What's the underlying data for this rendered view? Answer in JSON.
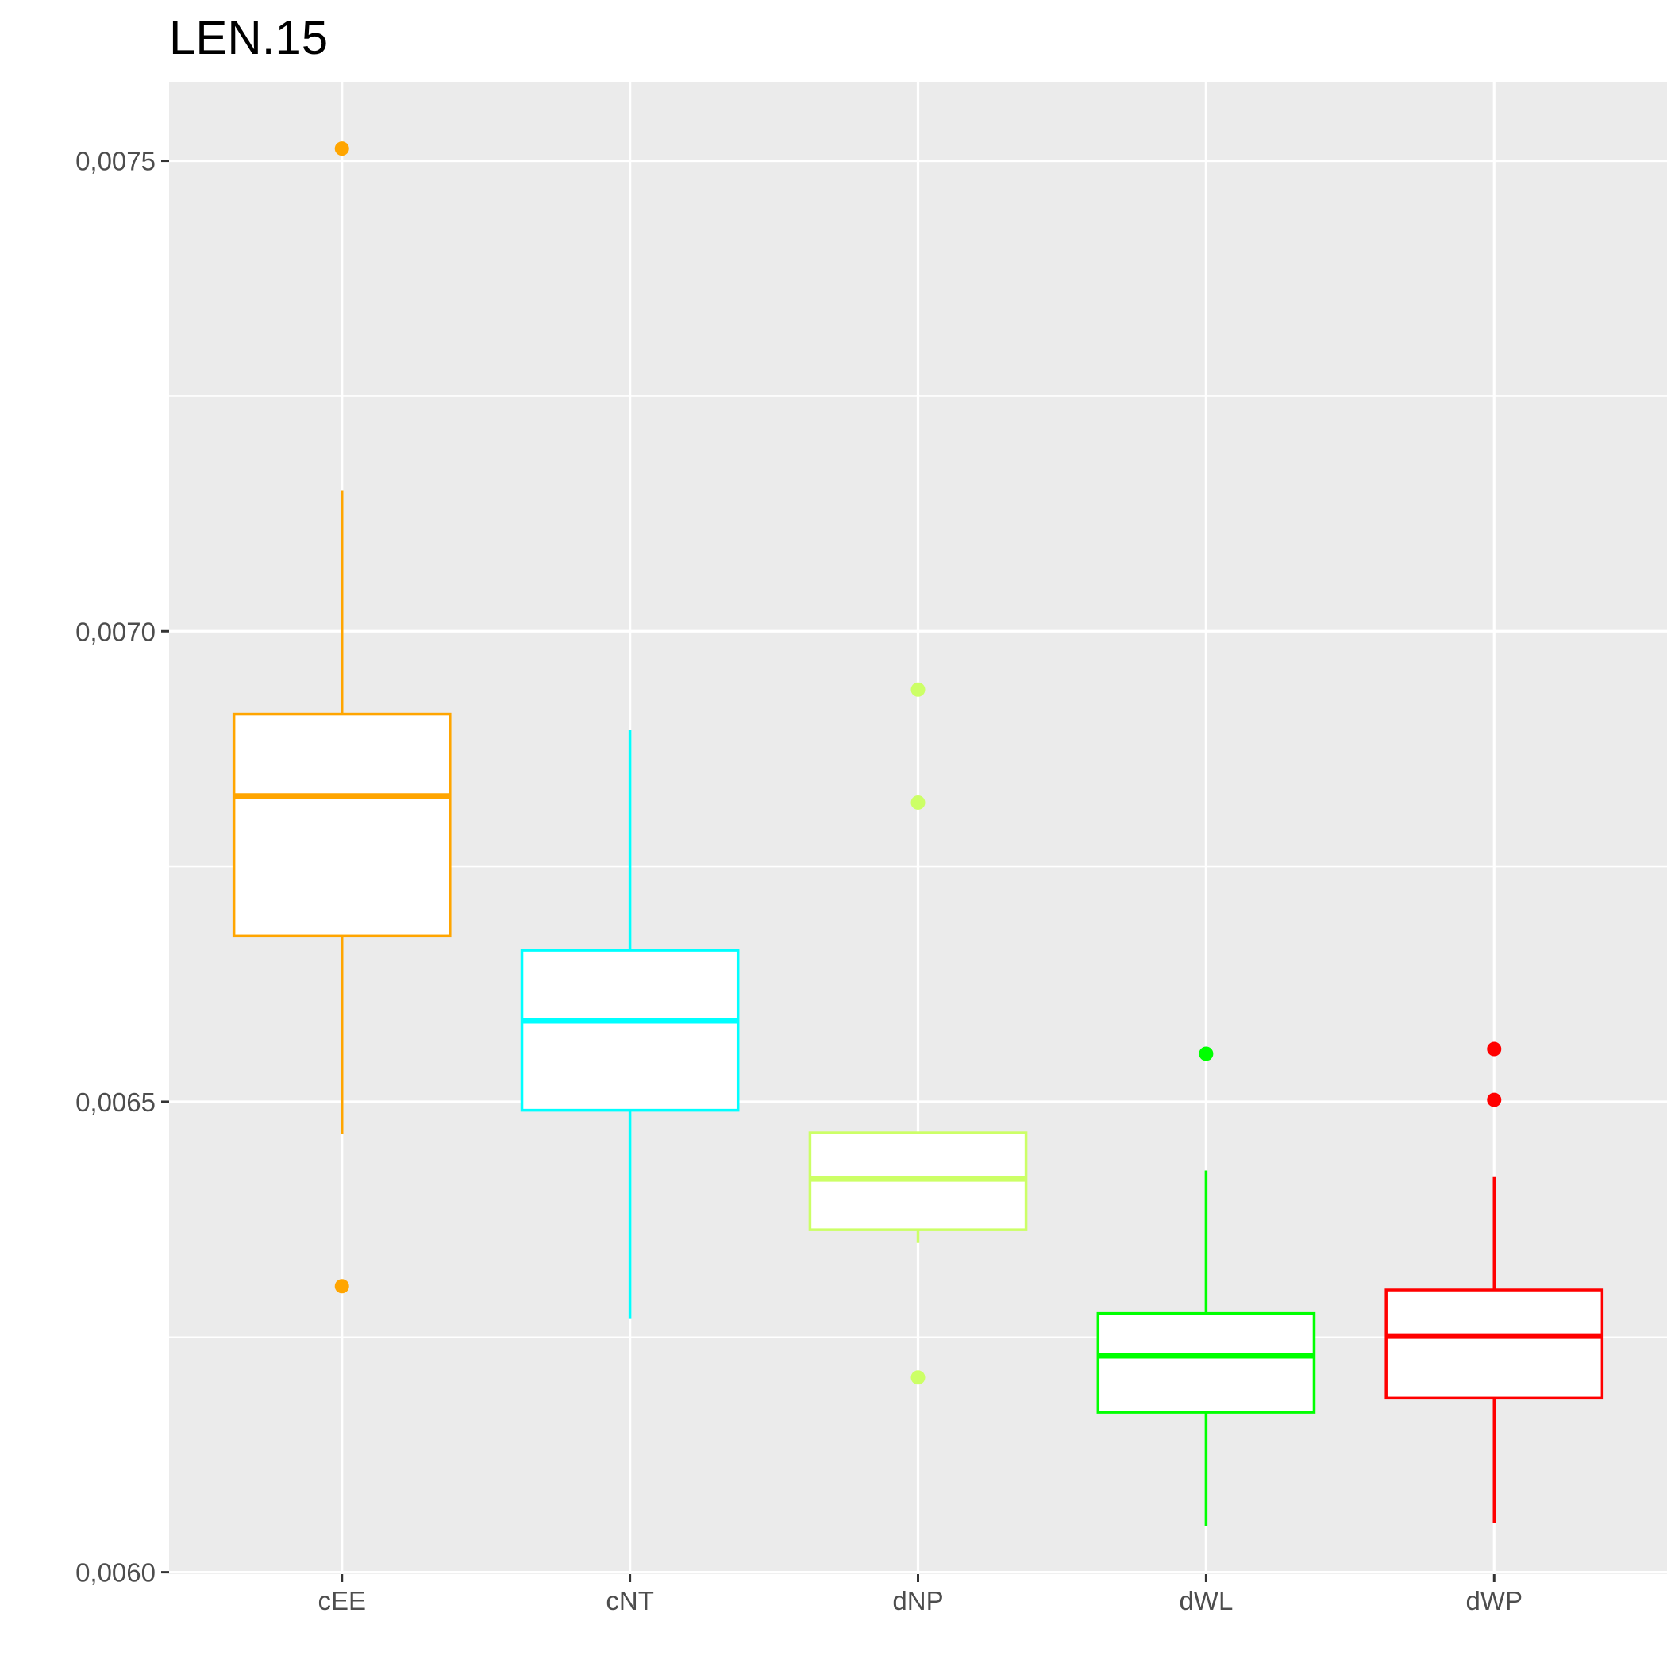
{
  "chart_data": {
    "type": "box",
    "title": "LEN.15",
    "xlabel": "",
    "ylabel": "",
    "ylim": [
      0.005998,
      0.007584
    ],
    "y_ticks": [
      {
        "value": 0.006,
        "label": "0,0060"
      },
      {
        "value": 0.0065,
        "label": "0,0065"
      },
      {
        "value": 0.007,
        "label": "0,0070"
      },
      {
        "value": 0.0075,
        "label": "0,0075"
      }
    ],
    "y_minor_ticks": [
      0.00625,
      0.00675,
      0.00725
    ],
    "categories": [
      "cEE",
      "cNT",
      "dNP",
      "dWL",
      "dWP"
    ],
    "boxes": [
      {
        "category": "cEE",
        "color": "#FFA500",
        "whisker_low": 0.006466,
        "q1": 0.006676,
        "median": 0.006825,
        "q3": 0.006912,
        "whisker_high": 0.00715,
        "outliers": [
          0.007513,
          0.006304
        ]
      },
      {
        "category": "cNT",
        "color": "#00FFFF",
        "whisker_low": 0.00627,
        "q1": 0.006491,
        "median": 0.006586,
        "q3": 0.006661,
        "whisker_high": 0.006895,
        "outliers": []
      },
      {
        "category": "dNP",
        "color": "#CCFF66",
        "whisker_low": 0.00635,
        "q1": 0.006364,
        "median": 0.006418,
        "q3": 0.006467,
        "whisker_high": 0.006467,
        "outliers": [
          0.006938,
          0.006818,
          0.006207
        ]
      },
      {
        "category": "dWL",
        "color": "#00FF00",
        "whisker_low": 0.006049,
        "q1": 0.00617,
        "median": 0.00623,
        "q3": 0.006275,
        "whisker_high": 0.006427,
        "outliers": [
          0.006551
        ]
      },
      {
        "category": "dWP",
        "color": "#FF0000",
        "whisker_low": 0.006052,
        "q1": 0.006185,
        "median": 0.006251,
        "q3": 0.0063,
        "whisker_high": 0.00642,
        "outliers": [
          0.006556,
          0.006502
        ]
      }
    ]
  }
}
